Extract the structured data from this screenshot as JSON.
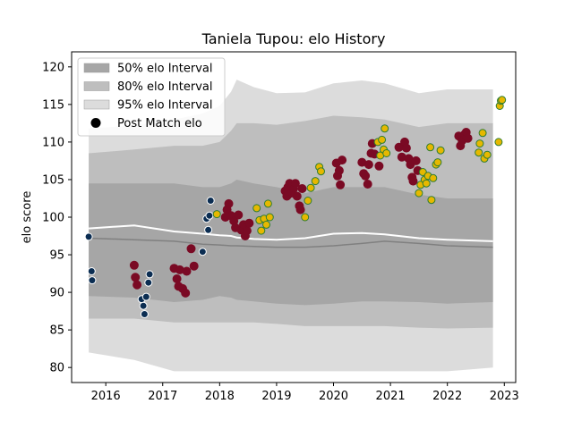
{
  "chart_data": {
    "type": "scatter",
    "title": "Taniela Tupou: elo History",
    "xlabel": "",
    "ylabel": "elo score",
    "xlim": [
      2015.4,
      2023.2
    ],
    "ylim": [
      78,
      122
    ],
    "xticks": [
      2016,
      2017,
      2018,
      2019,
      2020,
      2021,
      2022,
      2023
    ],
    "xtick_labels": [
      "2016",
      "2017",
      "2018",
      "2019",
      "2020",
      "2021",
      "2022",
      "2023"
    ],
    "yticks": [
      80,
      85,
      90,
      95,
      100,
      105,
      110,
      115,
      120
    ],
    "ytick_labels": [
      "80",
      "85",
      "90",
      "95",
      "100",
      "105",
      "110",
      "115",
      "120"
    ],
    "legend_position": "top-left",
    "legend": [
      {
        "label": "50% elo Interval",
        "kind": "band50"
      },
      {
        "label": "80% elo Interval",
        "kind": "band80"
      },
      {
        "label": "95% elo Interval",
        "kind": "band95"
      },
      {
        "label": "Post Match elo",
        "kind": "point"
      }
    ],
    "colors": {
      "band50": "#a6a6a6",
      "band80": "#bebebe",
      "band95": "#dcdcdc",
      "median_line": "#808080",
      "mean_line": "#ffffff",
      "navy": "#0b2d52",
      "maroon": "#7a0a24",
      "gold": "#e6b800",
      "gold_edge": "#2e7d32"
    },
    "bands": {
      "x": [
        2015.7,
        2016.5,
        2017.2,
        2017.7,
        2018.0,
        2018.2,
        2018.3,
        2018.6,
        2019.0,
        2019.5,
        2020.0,
        2020.5,
        2020.9,
        2021.5,
        2022.0,
        2022.8
      ],
      "q975": [
        111.8,
        112.2,
        113.0,
        113.8,
        114.8,
        116.7,
        118.3,
        117.3,
        116.5,
        116.6,
        117.8,
        118.2,
        117.8,
        116.5,
        117.0,
        117.0
      ],
      "q90": [
        108.5,
        109.0,
        109.5,
        109.5,
        110.0,
        111.5,
        112.5,
        112.5,
        112.3,
        112.8,
        113.5,
        113.3,
        113.0,
        112.0,
        112.5,
        112.5
      ],
      "q75": [
        104.5,
        104.5,
        104.5,
        104.0,
        104.0,
        104.5,
        105.0,
        104.5,
        104.0,
        103.2,
        104.0,
        104.0,
        104.0,
        103.0,
        102.5,
        102.5
      ],
      "q25": [
        89.5,
        89.3,
        88.7,
        89.0,
        89.5,
        89.3,
        89.0,
        88.8,
        88.5,
        88.3,
        88.5,
        88.8,
        88.8,
        88.7,
        88.5,
        88.7
      ],
      "q10": [
        86.5,
        86.5,
        86.0,
        86.0,
        86.0,
        86.0,
        86.0,
        86.0,
        85.8,
        85.5,
        85.5,
        85.5,
        85.5,
        85.3,
        85.2,
        85.3
      ],
      "q025": [
        82.0,
        81.0,
        79.5,
        79.5,
        79.5,
        79.5,
        79.5,
        79.5,
        79.5,
        79.5,
        79.5,
        79.5,
        79.5,
        79.5,
        79.5,
        80.0
      ],
      "median": [
        97.2,
        97.0,
        96.8,
        96.4,
        96.3,
        96.2,
        96.2,
        96.1,
        96.0,
        96.0,
        96.2,
        96.5,
        96.8,
        96.5,
        96.2,
        96.0
      ],
      "mean": [
        98.5,
        98.9,
        98.1,
        97.8,
        97.6,
        97.5,
        97.3,
        97.1,
        97.0,
        97.2,
        97.8,
        97.9,
        97.7,
        97.2,
        97.0,
        96.8
      ]
    },
    "series": [
      {
        "name": "navy",
        "points": [
          [
            2015.7,
            97.4
          ],
          [
            2015.75,
            92.8
          ],
          [
            2015.76,
            91.6
          ],
          [
            2016.63,
            89.1
          ],
          [
            2016.66,
            88.2
          ],
          [
            2016.68,
            87.1
          ],
          [
            2016.71,
            89.4
          ],
          [
            2016.75,
            91.3
          ],
          [
            2016.77,
            92.4
          ],
          [
            2017.7,
            95.4
          ],
          [
            2017.77,
            99.8
          ],
          [
            2017.8,
            98.3
          ],
          [
            2017.82,
            100.2
          ],
          [
            2017.84,
            102.2
          ]
        ]
      },
      {
        "name": "maroon",
        "points": [
          [
            2016.5,
            93.6
          ],
          [
            2016.52,
            92.0
          ],
          [
            2016.55,
            91.0
          ],
          [
            2017.2,
            93.2
          ],
          [
            2017.25,
            91.8
          ],
          [
            2017.28,
            90.8
          ],
          [
            2017.3,
            93.0
          ],
          [
            2017.35,
            90.5
          ],
          [
            2017.4,
            89.9
          ],
          [
            2017.42,
            92.8
          ],
          [
            2017.5,
            95.8
          ],
          [
            2017.55,
            93.5
          ],
          [
            2018.1,
            100.0
          ],
          [
            2018.13,
            101.0
          ],
          [
            2018.16,
            101.8
          ],
          [
            2018.2,
            100.2
          ],
          [
            2018.25,
            99.5
          ],
          [
            2018.28,
            98.6
          ],
          [
            2018.33,
            100.3
          ],
          [
            2018.38,
            98.3
          ],
          [
            2018.42,
            99.0
          ],
          [
            2018.45,
            97.5
          ],
          [
            2018.48,
            98.2
          ],
          [
            2018.52,
            99.2
          ],
          [
            2019.15,
            103.5
          ],
          [
            2019.18,
            102.8
          ],
          [
            2019.2,
            104.0
          ],
          [
            2019.23,
            104.5
          ],
          [
            2019.26,
            103.2
          ],
          [
            2019.3,
            103.8
          ],
          [
            2019.33,
            104.5
          ],
          [
            2019.36,
            102.8
          ],
          [
            2019.4,
            101.5
          ],
          [
            2019.42,
            101.0
          ],
          [
            2019.45,
            103.8
          ],
          [
            2020.05,
            107.2
          ],
          [
            2020.07,
            105.5
          ],
          [
            2020.1,
            106.2
          ],
          [
            2020.12,
            104.3
          ],
          [
            2020.15,
            107.6
          ],
          [
            2020.5,
            107.3
          ],
          [
            2020.53,
            105.8
          ],
          [
            2020.56,
            105.5
          ],
          [
            2020.6,
            104.4
          ],
          [
            2020.62,
            107.0
          ],
          [
            2020.66,
            108.5
          ],
          [
            2020.68,
            109.8
          ],
          [
            2020.72,
            108.4
          ],
          [
            2020.8,
            106.8
          ],
          [
            2021.15,
            109.3
          ],
          [
            2021.2,
            108.0
          ],
          [
            2021.25,
            110.0
          ],
          [
            2021.28,
            109.2
          ],
          [
            2021.32,
            107.8
          ],
          [
            2021.35,
            107.0
          ],
          [
            2021.38,
            105.3
          ],
          [
            2021.4,
            104.8
          ],
          [
            2021.45,
            107.5
          ],
          [
            2021.48,
            106.2
          ],
          [
            2022.2,
            110.8
          ],
          [
            2022.23,
            109.5
          ],
          [
            2022.26,
            110.2
          ],
          [
            2022.3,
            111.0
          ],
          [
            2022.33,
            111.3
          ],
          [
            2022.36,
            110.5
          ]
        ]
      },
      {
        "name": "gold",
        "points": [
          [
            2017.95,
            100.4
          ],
          [
            2018.65,
            101.2
          ],
          [
            2018.7,
            99.6
          ],
          [
            2018.73,
            98.2
          ],
          [
            2018.78,
            99.8
          ],
          [
            2018.82,
            99.0
          ],
          [
            2018.85,
            101.8
          ],
          [
            2018.88,
            100.0
          ],
          [
            2019.5,
            100.0
          ],
          [
            2019.55,
            102.2
          ],
          [
            2019.6,
            103.9
          ],
          [
            2019.68,
            104.8
          ],
          [
            2019.75,
            106.7
          ],
          [
            2019.78,
            106.1
          ],
          [
            2020.78,
            110.0
          ],
          [
            2020.82,
            108.2
          ],
          [
            2020.85,
            110.3
          ],
          [
            2020.88,
            109.0
          ],
          [
            2020.9,
            111.8
          ],
          [
            2020.93,
            108.5
          ],
          [
            2021.5,
            103.2
          ],
          [
            2021.53,
            104.3
          ],
          [
            2021.57,
            106.0
          ],
          [
            2021.6,
            105.0
          ],
          [
            2021.63,
            104.5
          ],
          [
            2021.66,
            105.5
          ],
          [
            2021.7,
            109.3
          ],
          [
            2021.72,
            102.3
          ],
          [
            2021.75,
            105.2
          ],
          [
            2021.8,
            107.0
          ],
          [
            2021.83,
            107.3
          ],
          [
            2021.88,
            108.9
          ],
          [
            2022.55,
            108.6
          ],
          [
            2022.57,
            109.8
          ],
          [
            2022.62,
            111.2
          ],
          [
            2022.65,
            107.8
          ],
          [
            2022.7,
            108.3
          ],
          [
            2022.9,
            110.0
          ],
          [
            2022.92,
            114.8
          ],
          [
            2022.94,
            115.5
          ],
          [
            2022.96,
            115.6
          ]
        ]
      }
    ]
  }
}
